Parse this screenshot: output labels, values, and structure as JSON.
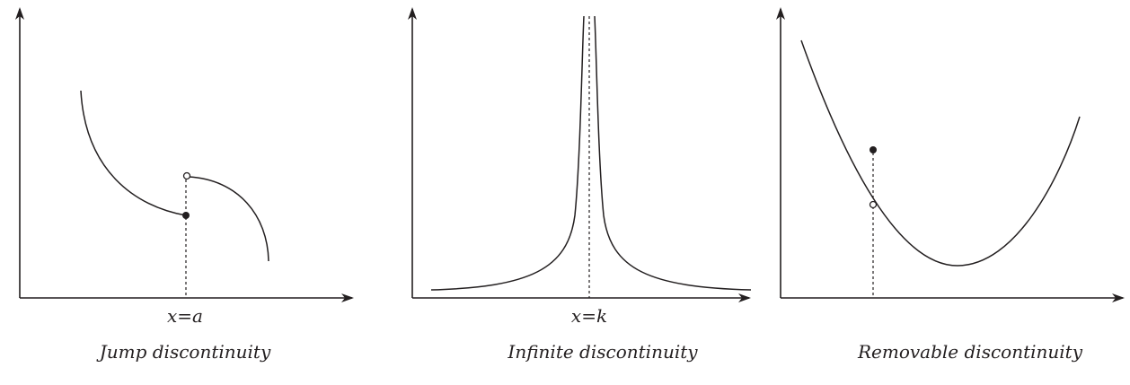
{
  "panels": [
    {
      "caption": "Jump discontinuity",
      "x_label": "x=a"
    },
    {
      "caption": "Infinite discontinuity",
      "x_label": "x=k"
    },
    {
      "caption": "Removable discontinuity"
    }
  ],
  "colors": {
    "ink": "#231f20",
    "background": "#ffffff"
  }
}
